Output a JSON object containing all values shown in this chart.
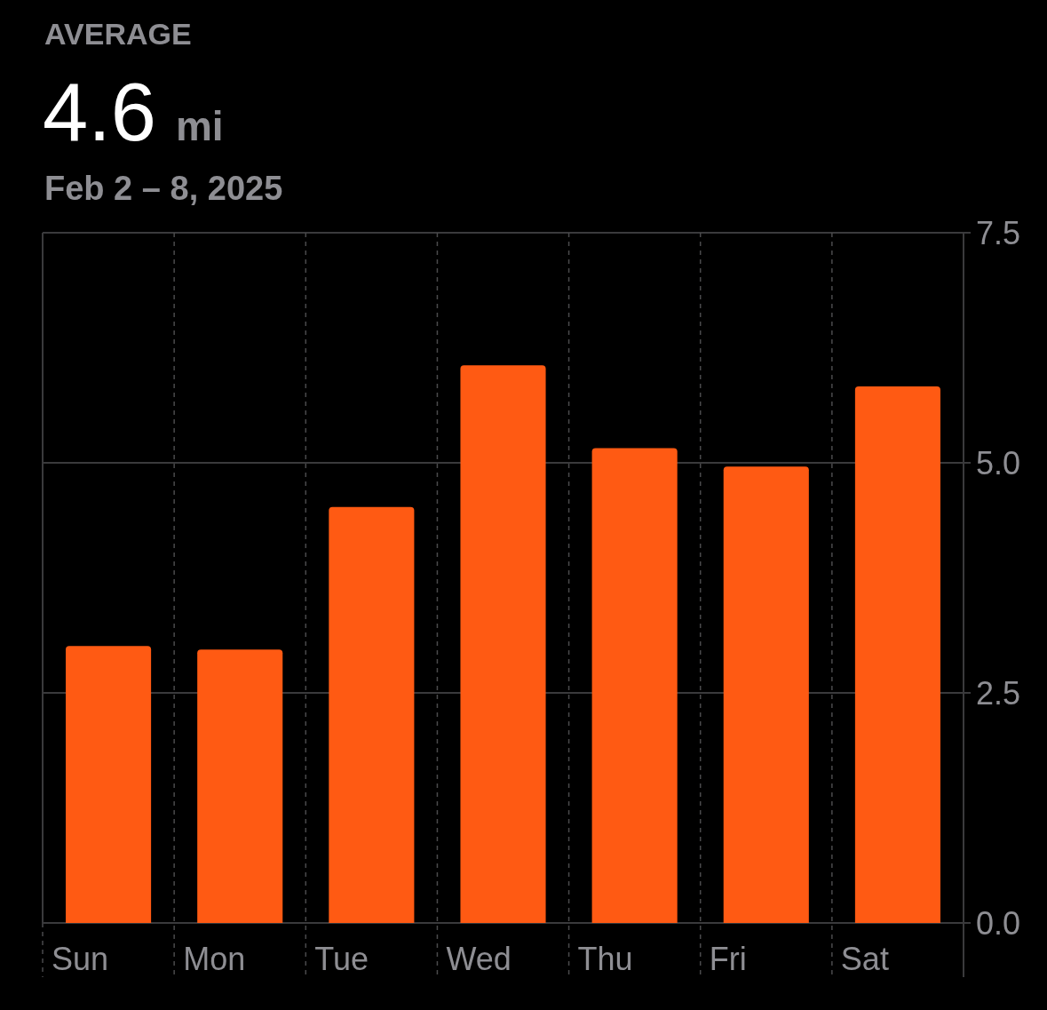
{
  "chart_data": {
    "type": "bar",
    "title": "AVERAGE",
    "subtitle": "Feb 2 – 8, 2025",
    "annotations": [
      "4.6",
      "mi"
    ],
    "categories": [
      "Sun",
      "Mon",
      "Tue",
      "Wed",
      "Thu",
      "Fri",
      "Sat"
    ],
    "values": [
      3.01,
      2.97,
      4.52,
      6.06,
      5.16,
      4.96,
      5.83
    ],
    "color": "#ff5a13",
    "ylim": [
      0,
      7.5
    ],
    "yticks": [
      {
        "value": 0,
        "label": "0.0"
      },
      {
        "value": 2.5,
        "label": "2.5"
      },
      {
        "value": 5,
        "label": "5.0"
      },
      {
        "value": 7.5,
        "label": "7.5"
      }
    ],
    "grid": true
  }
}
